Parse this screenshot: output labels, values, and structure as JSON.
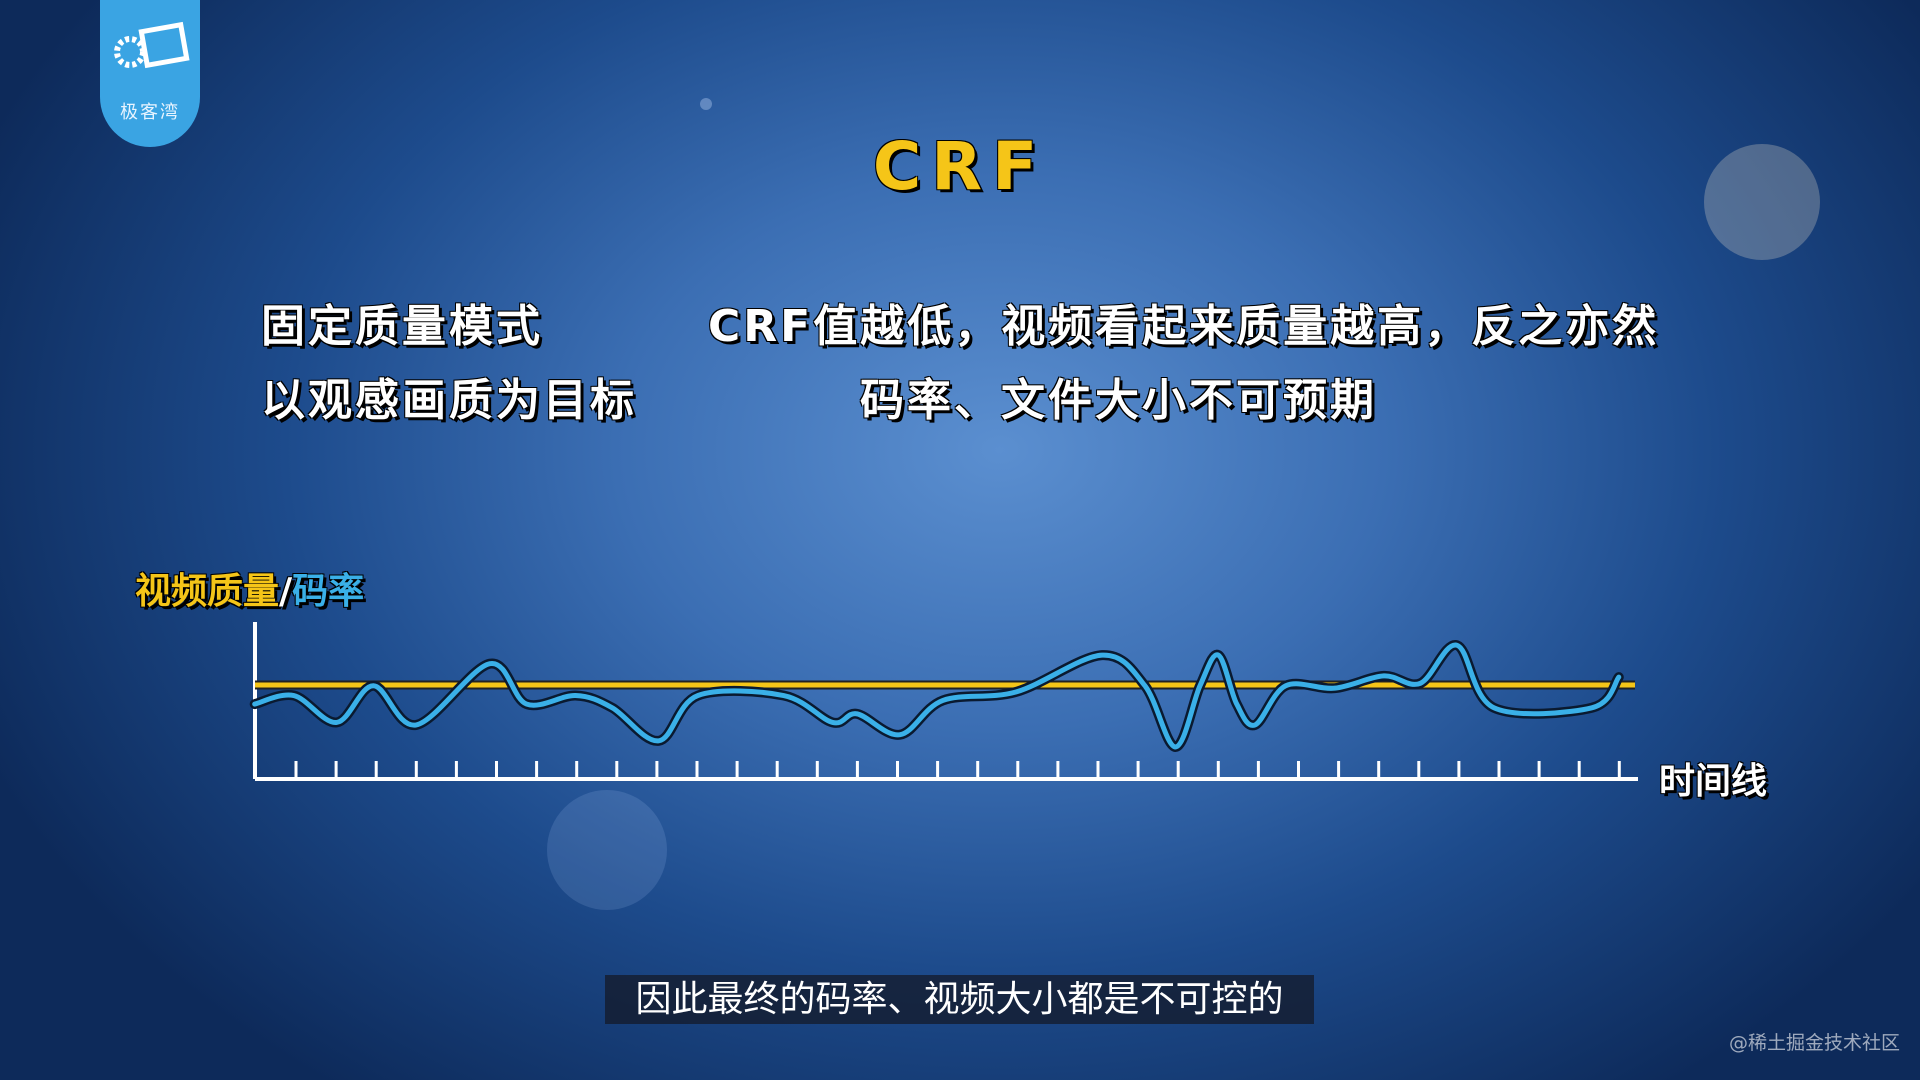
{
  "logo": {
    "text": "极客湾"
  },
  "title": "CRF",
  "rows": [
    [
      "固定质量模式",
      "CRF值越低，视频看起来质量越高，反之亦然"
    ],
    [
      "以观感画质为目标",
      "码率、文件大小不可预期"
    ]
  ],
  "chart": {
    "y_label": {
      "quality": "视频质量",
      "separator": "/",
      "bitrate": "码率"
    },
    "x_label": "时间线"
  },
  "subtitle": "因此最终的码率、视频大小都是不可控的",
  "watermark": "@稀土掘金技术社区"
}
